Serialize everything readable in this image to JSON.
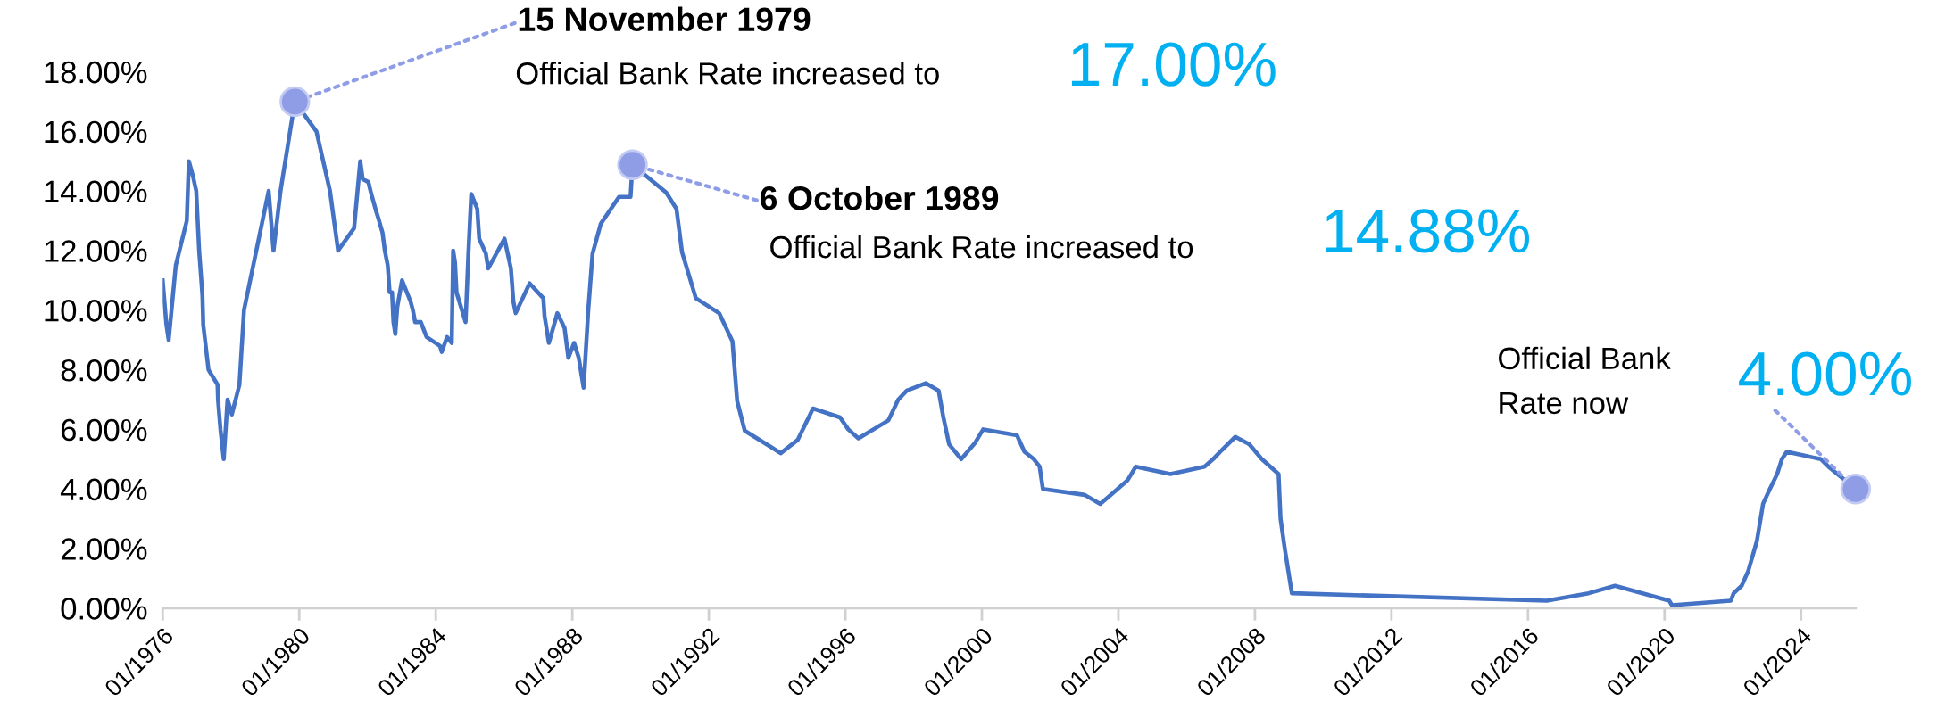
{
  "chart_data": {
    "type": "line",
    "color": "#4472c4",
    "line_style": "solid",
    "grid": false,
    "legend": false,
    "x": [
      "1976-01-01",
      "1976-02-10",
      "1976-03-05",
      "1976-05-20",
      "1976-09-15",
      "1976-10-07",
      "1976-11-20",
      "1976-12-25",
      "1977-01-25",
      "1977-03-01",
      "1977-03-10",
      "1977-05-05",
      "1977-08-10",
      "1977-08-15",
      "1977-09-10",
      "1977-10-15",
      "1977-11-25",
      "1978-01-10",
      "1978-04-01",
      "1978-05-20",
      "1979-02-08",
      "1979-04-01",
      "1979-06-15",
      "1979-11-15",
      "1980-07-03",
      "1980-11-25",
      "1981-02-20",
      "1981-08-10",
      "1981-10-15",
      "1981-11-10",
      "1982-01-10",
      "1982-02-10",
      "1982-04-05",
      "1982-04-25",
      "1982-06-10",
      "1982-07-05",
      "1982-08-05",
      "1982-08-25",
      "1982-09-20",
      "1982-10-05",
      "1982-10-25",
      "1982-11-15",
      "1983-01-05",
      "1983-04-05",
      "1983-05-01",
      "1983-05-25",
      "1983-07-25",
      "1983-09-25",
      "1984-02-15",
      "1984-03-05",
      "1984-05-01",
      "1984-06-20",
      "1984-07-05",
      "1984-07-25",
      "1984-08-10",
      "1984-11-15",
      "1984-12-15",
      "1985-01-15",
      "1985-03-20",
      "1985-04-10",
      "1985-06-20",
      "1985-07-15",
      "1986-01-05",
      "1986-03-15",
      "1986-04-10",
      "1986-05-05",
      "1986-10-01",
      "1987-02-25",
      "1987-03-10",
      "1987-04-25",
      "1987-07-25",
      "1987-10-10",
      "1987-11-20",
      "1988-01-20",
      "1988-03-10",
      "1988-05-01",
      "1988-06-20",
      "1988-08-05",
      "1988-11-01",
      "1989-05-15",
      "1989-09-15",
      "1989-10-06",
      "1990-10-01",
      "1991-01-20",
      "1991-03-20",
      "1991-08-15",
      "1992-04-20",
      "1992-09-10",
      "1992-10-30",
      "1993-01-20",
      "1993-11-01",
      "1994-02-08",
      "1994-08-10",
      "1995-01-20",
      "1995-11-05",
      "1996-02-01",
      "1996-05-20",
      "1997-04-05",
      "1997-07-20",
      "1997-10-20",
      "1998-05-10",
      "1998-09-25",
      "1998-11-15",
      "1999-01-15",
      "1999-05-25",
      "1999-10-20",
      "2000-01-15",
      "2001-01-10",
      "2001-04-01",
      "2001-07-10",
      "2001-09-10",
      "2001-10-15",
      "2003-01-05",
      "2003-06-20",
      "2003-10-10",
      "2004-04-10",
      "2004-07-05",
      "2005-07-10",
      "2006-07-10",
      "2006-10-10",
      "2007-01-10",
      "2007-06-05",
      "2007-11-01",
      "2008-03-15",
      "2008-09-10",
      "2008-10-01",
      "2008-11-15",
      "2009-01-30",
      "2016-07-20",
      "2017-10-10",
      "2018-07-20",
      "2020-02-20",
      "2020-03-20",
      "2021-12-10",
      "2022-01-10",
      "2022-04-05",
      "2022-06-15",
      "2022-09-15",
      "2022-10-25",
      "2022-11-20",
      "2023-02-01",
      "2023-04-20",
      "2023-06-10",
      "2023-08-01",
      "2024-08-01",
      "2024-10-20",
      "2025-08-07"
    ],
    "values": [
      11,
      9.5,
      9,
      11.5,
      13,
      15,
      14.5,
      14,
      12,
      10.5,
      9.5,
      8,
      7.5,
      7,
      6,
      5,
      7,
      6.5,
      7.5,
      10,
      14,
      12,
      14,
      17,
      16,
      14,
      12,
      12.75,
      15,
      14.4,
      14.3,
      13.9,
      13.3,
      13.1,
      12.6,
      12,
      11.5,
      10.6,
      10.6,
      9.6,
      9.2,
      10.1,
      11,
      10.3,
      10,
      9.6,
      9.6,
      9.1,
      8.8,
      8.6,
      9.1,
      8.9,
      12,
      11.6,
      10.6,
      9.6,
      11.9,
      13.9,
      13.4,
      12.4,
      11.9,
      11.4,
      12.4,
      11.4,
      10.3,
      9.9,
      10.9,
      10.4,
      9.8,
      8.9,
      9.9,
      9.4,
      8.4,
      8.9,
      8.4,
      7.4,
      10,
      11.9,
      12.9,
      13.8,
      13.8,
      14.88,
      13.95,
      13.4,
      11.95,
      10.4,
      9.9,
      8.95,
      6.95,
      5.95,
      5.4,
      5.2,
      5.65,
      6.7,
      6.4,
      6,
      5.7,
      6.3,
      7,
      7.3,
      7.55,
      7.3,
      6.4,
      5.5,
      5,
      5.55,
      6,
      5.8,
      5.25,
      5,
      4.75,
      4,
      3.8,
      3.5,
      3.8,
      4.3,
      4.75,
      4.5,
      4.75,
      5,
      5.3,
      5.75,
      5.5,
      5,
      4.5,
      3,
      2,
      0.5,
      0.25,
      0.5,
      0.75,
      0.25,
      0.1,
      0.25,
      0.5,
      0.75,
      1.25,
      2.25,
      3,
      3.5,
      4,
      4.5,
      5,
      5.25,
      5,
      4.75,
      4
    ],
    "xlim": [
      "1976-01-01",
      "2025-08-07"
    ],
    "xticks": [
      {
        "value": "1976-01-01",
        "label": "01/1976"
      },
      {
        "value": "1980-01-01",
        "label": "01/1980"
      },
      {
        "value": "1984-01-01",
        "label": "01/1984"
      },
      {
        "value": "1988-01-01",
        "label": "01/1988"
      },
      {
        "value": "1992-01-01",
        "label": "01/1992"
      },
      {
        "value": "1996-01-01",
        "label": "01/1996"
      },
      {
        "value": "2000-01-01",
        "label": "01/2000"
      },
      {
        "value": "2004-01-01",
        "label": "01/2004"
      },
      {
        "value": "2008-01-01",
        "label": "01/2008"
      },
      {
        "value": "2012-01-01",
        "label": "01/2012"
      },
      {
        "value": "2016-01-01",
        "label": "01/2016"
      },
      {
        "value": "2020-01-01",
        "label": "01/2020"
      },
      {
        "value": "2024-01-01",
        "label": "01/2024"
      }
    ],
    "ylim": [
      0,
      18
    ],
    "yticks": [
      {
        "value": 0,
        "label": "0.00%"
      },
      {
        "value": 2,
        "label": "2.00%"
      },
      {
        "value": 4,
        "label": "4.00%"
      },
      {
        "value": 6,
        "label": "6.00%"
      },
      {
        "value": 8,
        "label": "8.00%"
      },
      {
        "value": 10,
        "label": "10.00%"
      },
      {
        "value": 12,
        "label": "12.00%"
      },
      {
        "value": 14,
        "label": "14.00%"
      },
      {
        "value": 16,
        "label": "16.00%"
      },
      {
        "value": 18,
        "label": "18.00%"
      }
    ],
    "annotations": [
      {
        "text": "15 November 1979",
        "x": "1979-11-15",
        "y": 17
      },
      "Official Bank Rate increased to",
      "17.00%",
      {
        "text": "6 October 1989",
        "x": "1989-10-06",
        "y": 14.88
      },
      "Official Bank Rate increased to",
      "14.88%",
      "Official Bank\nRate now",
      {
        "text": "4.00%",
        "x": "2025-08-07",
        "y": 4
      }
    ]
  }
}
